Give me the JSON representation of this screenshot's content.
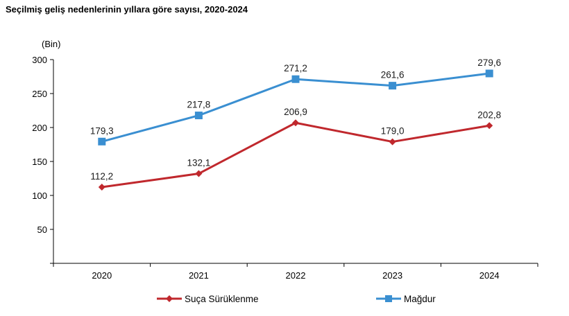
{
  "chart_data": {
    "type": "line",
    "title": "Seçilmiş geliş nedenlerinin yıllara göre sayısı, 2020-2024",
    "unit_label": "(Bin)",
    "xlabel": "",
    "ylabel": "",
    "categories": [
      "2020",
      "2021",
      "2022",
      "2023",
      "2024"
    ],
    "ylim": [
      0,
      300
    ],
    "yticks": [
      "300",
      "250",
      "200",
      "150",
      "100",
      "50"
    ],
    "ytick_values": [
      300,
      250,
      200,
      150,
      100,
      50
    ],
    "grid": false,
    "legend_position": "bottom",
    "series": [
      {
        "name": "Suça Sürüklenme",
        "values": [
          112.2,
          132.1,
          206.9,
          179.0,
          202.8
        ],
        "labels": [
          "112,2",
          "132,1",
          "206,9",
          "179,0",
          "202,8"
        ],
        "color": "#c0282d",
        "marker": "diamond"
      },
      {
        "name": "Mağdur",
        "values": [
          179.3,
          217.8,
          271.2,
          261.6,
          279.6
        ],
        "labels": [
          "179,3",
          "217,8",
          "271,2",
          "261,6",
          "279,6"
        ],
        "color": "#3a8fd1",
        "marker": "square"
      }
    ]
  }
}
